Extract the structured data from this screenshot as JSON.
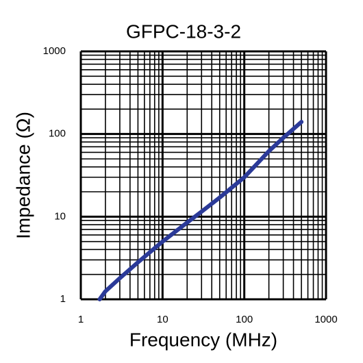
{
  "chart_data": {
    "type": "line",
    "title": "GFPC-18-3-2",
    "x_label": "Frequency (MHz)",
    "y_label": "Impedance (Ω)",
    "x": [
      1.7,
      2,
      3,
      5,
      10,
      20,
      30,
      50,
      100,
      200,
      300,
      500
    ],
    "values": [
      1,
      1.25,
      1.8,
      2.8,
      5,
      8.5,
      11.5,
      17,
      30,
      62,
      90,
      140
    ],
    "color": "#2b3a98",
    "xlim": [
      1,
      1000
    ],
    "xticks": [
      1,
      10,
      100,
      1000
    ],
    "ylim": [
      1,
      1000
    ],
    "yticks": [
      1,
      10,
      100,
      1000
    ],
    "xscale": "log",
    "yscale": "log",
    "grid": true
  }
}
